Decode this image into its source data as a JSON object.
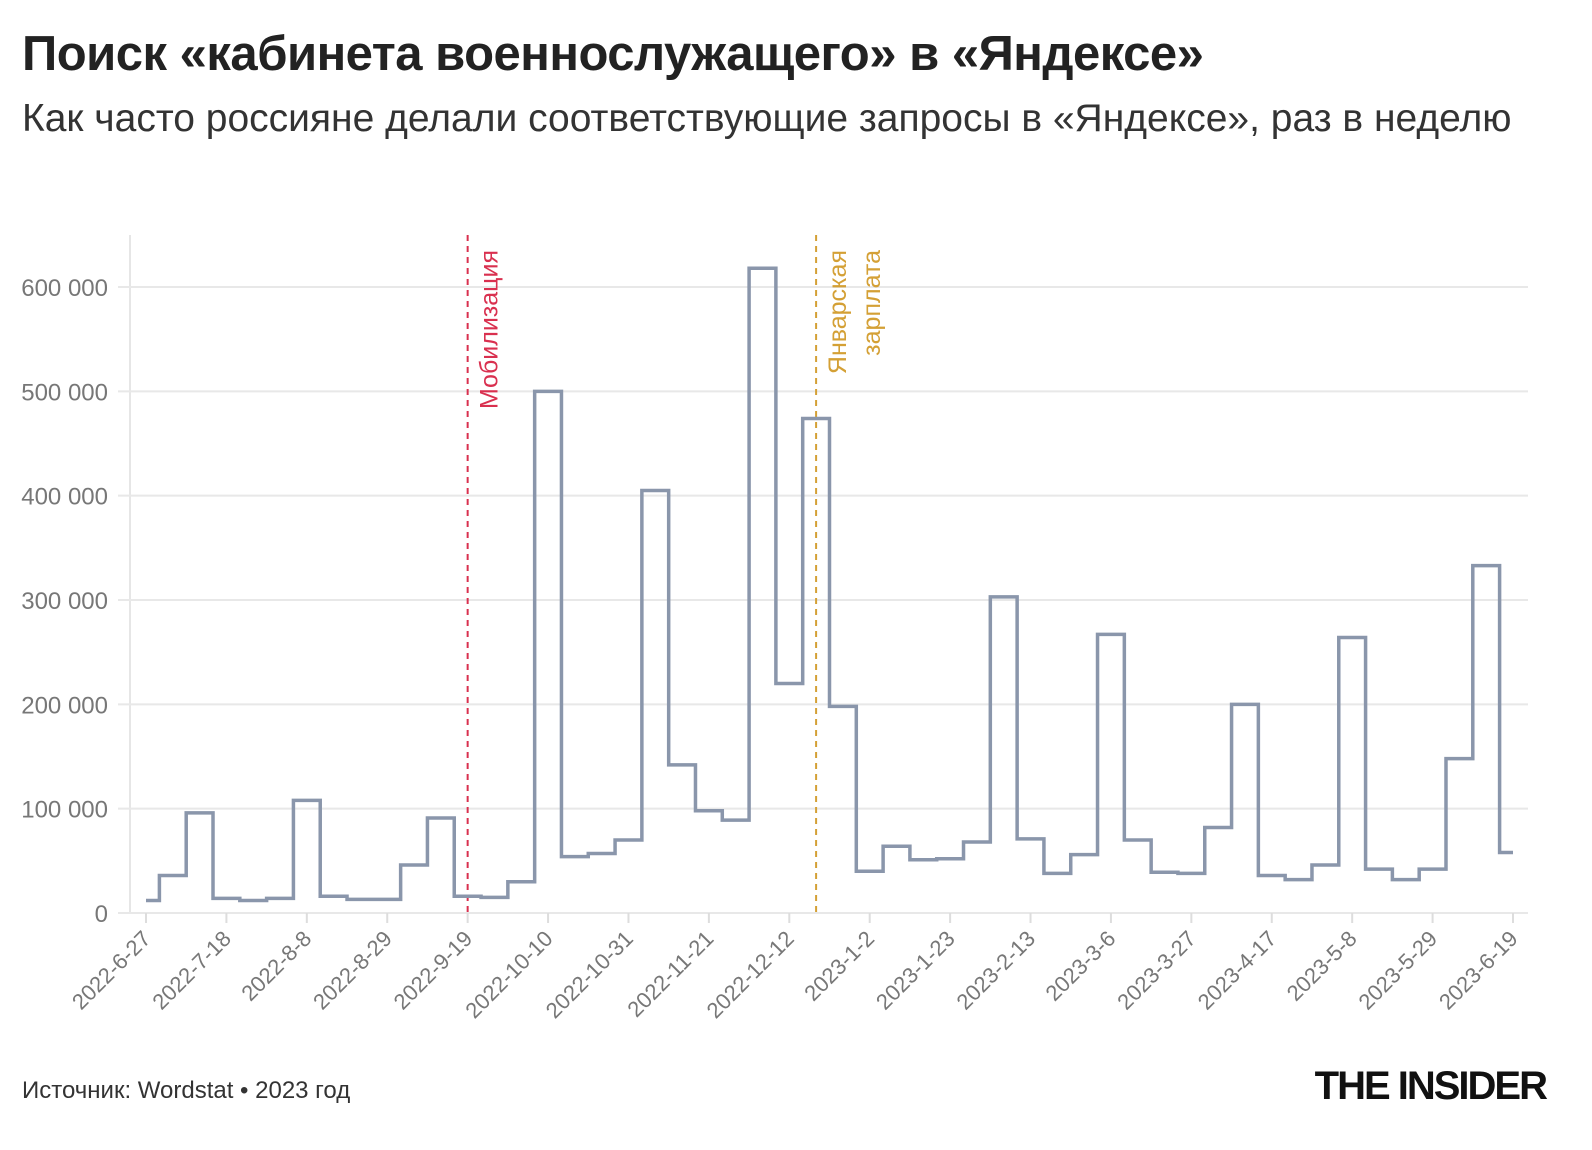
{
  "title": "Поиск «кабинета военнослужащего» в «Яндексе»",
  "subtitle": "Как часто россияне делали соответствующие запросы в «Яндексе», раз в неделю",
  "source": "Источник: Wordstat • 2023 год",
  "logo": "THE INSIDER",
  "chart_data": {
    "type": "line",
    "step": "mid",
    "line_color": "#8a96ab",
    "grid": true,
    "ylim": [
      0,
      600000
    ],
    "y_ticks": [
      0,
      100000,
      200000,
      300000,
      400000,
      500000,
      600000
    ],
    "y_tick_labels": [
      "0",
      "100 000",
      "200 000",
      "300 000",
      "400 000",
      "500 000",
      "600 000"
    ],
    "x_tick_labels": [
      "2022-6-27",
      "2022-7-18",
      "2022-8-8",
      "2022-8-29",
      "2022-9-19",
      "2022-10-10",
      "2022-10-31",
      "2022-11-21",
      "2022-12-12",
      "2023-1-2",
      "2023-1-23",
      "2023-2-13",
      "2023-3-6",
      "2023-3-27",
      "2023-4-17",
      "2023-5-8",
      "2023-5-29",
      "2023-6-19"
    ],
    "x": [
      "2022-6-27",
      "2022-7-4",
      "2022-7-11",
      "2022-7-18",
      "2022-7-25",
      "2022-8-1",
      "2022-8-8",
      "2022-8-15",
      "2022-8-22",
      "2022-8-29",
      "2022-9-5",
      "2022-9-12",
      "2022-9-19",
      "2022-9-26",
      "2022-10-3",
      "2022-10-10",
      "2022-10-17",
      "2022-10-24",
      "2022-10-31",
      "2022-11-7",
      "2022-11-14",
      "2022-11-21",
      "2022-11-28",
      "2022-12-5",
      "2022-12-12",
      "2022-12-19",
      "2022-12-26",
      "2023-1-2",
      "2023-1-9",
      "2023-1-16",
      "2023-1-23",
      "2023-1-30",
      "2023-2-6",
      "2023-2-13",
      "2023-2-20",
      "2023-2-27",
      "2023-3-6",
      "2023-3-13",
      "2023-3-20",
      "2023-3-27",
      "2023-4-3",
      "2023-4-10",
      "2023-4-17",
      "2023-4-24",
      "2023-5-1",
      "2023-5-8",
      "2023-5-15",
      "2023-5-22",
      "2023-5-29",
      "2023-6-5",
      "2023-6-12",
      "2023-6-19"
    ],
    "values": [
      12000,
      36000,
      96000,
      14000,
      12000,
      14000,
      108000,
      16000,
      13000,
      13000,
      46000,
      91000,
      16000,
      15000,
      30000,
      500000,
      54000,
      57000,
      70000,
      405000,
      142000,
      98000,
      89000,
      618000,
      220000,
      474000,
      198000,
      40000,
      64000,
      51000,
      52000,
      68000,
      303000,
      71000,
      38000,
      56000,
      267000,
      70000,
      39000,
      38000,
      82000,
      200000,
      36000,
      32000,
      46000,
      264000,
      42000,
      32000,
      42000,
      148000,
      333000,
      58000
    ],
    "annotations": [
      {
        "x": "2022-9-19",
        "label": "Мобилизация",
        "color": "#d9304f"
      },
      {
        "x": "2022-12-19",
        "label": "Январская зарплата",
        "lines": [
          "Январская",
          "зарплата"
        ],
        "color": "#d4a035"
      }
    ]
  }
}
